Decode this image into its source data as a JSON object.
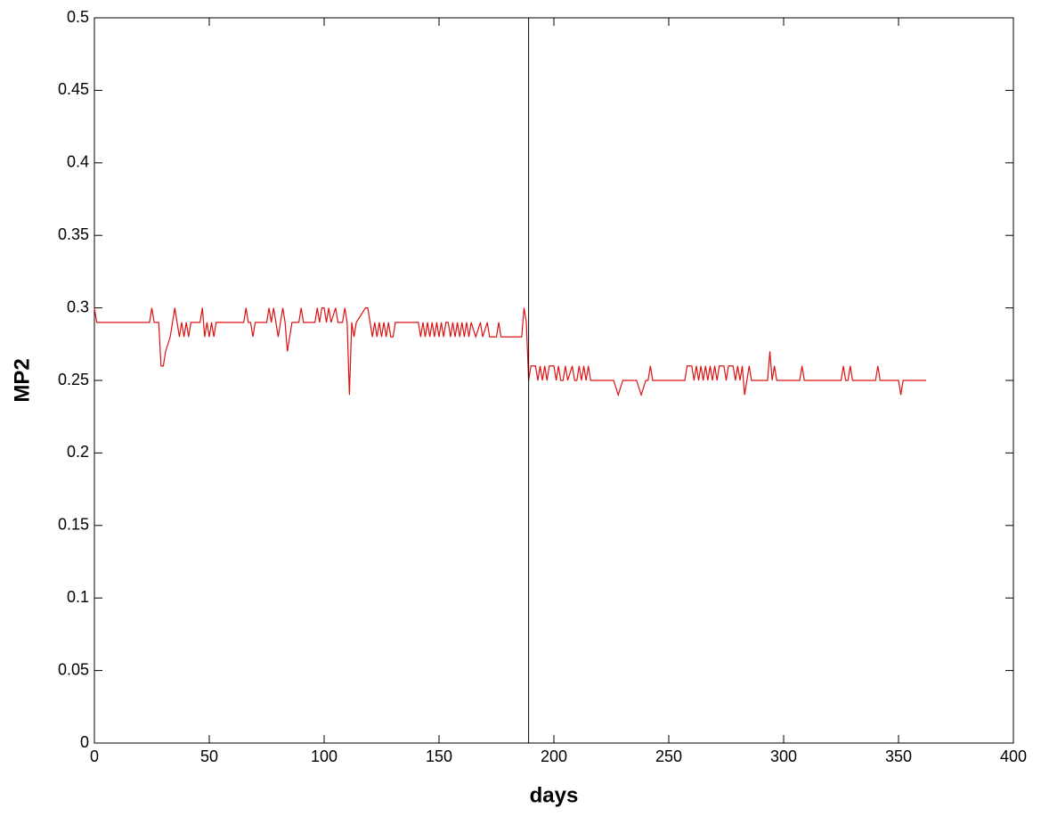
{
  "chart_data": {
    "type": "line",
    "xlabel": "days",
    "ylabel": "MP2",
    "xlim": [
      0,
      400
    ],
    "ylim": [
      0,
      0.5
    ],
    "xticks": [
      0,
      50,
      100,
      150,
      200,
      250,
      300,
      350,
      400
    ],
    "yticks": [
      0,
      0.05,
      0.1,
      0.15,
      0.2,
      0.25,
      0.3,
      0.35,
      0.4,
      0.45,
      0.5
    ],
    "vline": 189,
    "series": [
      {
        "color": "#dd1111",
        "x": [
          0,
          1,
          24,
          25,
          26,
          28,
          29,
          30,
          31,
          33,
          35,
          36,
          37,
          38,
          39,
          40,
          41,
          42,
          46,
          47,
          48,
          49,
          50,
          51,
          52,
          53,
          65,
          66,
          67,
          68,
          69,
          70,
          75,
          76,
          77,
          78,
          79,
          80,
          81,
          82,
          83,
          84,
          85,
          86,
          89,
          90,
          91,
          96,
          97,
          98,
          99,
          100,
          101,
          102,
          103,
          105,
          106,
          108,
          109,
          110,
          111,
          112,
          113,
          114,
          118,
          119,
          120,
          121,
          122,
          123,
          124,
          125,
          126,
          127,
          128,
          129,
          130,
          131,
          141,
          142,
          143,
          144,
          145,
          146,
          147,
          148,
          149,
          150,
          151,
          152,
          153,
          154,
          155,
          156,
          157,
          158,
          159,
          160,
          161,
          162,
          163,
          164,
          166,
          168,
          169,
          171,
          172,
          175,
          176,
          177,
          186,
          187,
          188,
          189,
          190,
          192,
          193,
          194,
          195,
          196,
          197,
          198,
          200,
          201,
          202,
          203,
          204,
          205,
          206,
          208,
          209,
          210,
          211,
          212,
          213,
          214,
          215,
          216,
          226,
          228,
          230,
          236,
          238,
          240,
          241,
          242,
          243,
          257,
          258,
          260,
          261,
          262,
          263,
          264,
          265,
          266,
          267,
          268,
          269,
          270,
          271,
          272,
          274,
          275,
          276,
          278,
          279,
          280,
          281,
          282,
          283,
          284,
          285,
          286,
          293,
          294,
          295,
          296,
          297,
          307,
          308,
          309,
          325,
          326,
          327,
          328,
          329,
          330,
          340,
          341,
          342,
          350,
          351,
          352,
          362
        ],
        "values": [
          0.3,
          0.29,
          0.29,
          0.3,
          0.29,
          0.29,
          0.26,
          0.26,
          0.27,
          0.28,
          0.3,
          0.29,
          0.28,
          0.29,
          0.28,
          0.29,
          0.28,
          0.29,
          0.29,
          0.3,
          0.28,
          0.29,
          0.28,
          0.29,
          0.28,
          0.29,
          0.29,
          0.3,
          0.29,
          0.29,
          0.28,
          0.29,
          0.29,
          0.3,
          0.29,
          0.3,
          0.29,
          0.28,
          0.29,
          0.3,
          0.29,
          0.27,
          0.28,
          0.29,
          0.29,
          0.3,
          0.29,
          0.29,
          0.3,
          0.29,
          0.3,
          0.3,
          0.29,
          0.3,
          0.29,
          0.3,
          0.29,
          0.29,
          0.3,
          0.29,
          0.24,
          0.29,
          0.28,
          0.29,
          0.3,
          0.3,
          0.29,
          0.28,
          0.29,
          0.28,
          0.29,
          0.28,
          0.29,
          0.28,
          0.29,
          0.28,
          0.28,
          0.29,
          0.29,
          0.28,
          0.29,
          0.28,
          0.29,
          0.28,
          0.29,
          0.28,
          0.29,
          0.28,
          0.29,
          0.28,
          0.29,
          0.29,
          0.28,
          0.29,
          0.28,
          0.29,
          0.28,
          0.29,
          0.28,
          0.29,
          0.28,
          0.29,
          0.28,
          0.29,
          0.28,
          0.29,
          0.28,
          0.28,
          0.29,
          0.28,
          0.28,
          0.3,
          0.29,
          0.25,
          0.26,
          0.26,
          0.25,
          0.26,
          0.25,
          0.26,
          0.25,
          0.26,
          0.26,
          0.25,
          0.26,
          0.25,
          0.25,
          0.26,
          0.25,
          0.26,
          0.25,
          0.25,
          0.26,
          0.25,
          0.26,
          0.25,
          0.26,
          0.25,
          0.25,
          0.24,
          0.25,
          0.25,
          0.24,
          0.25,
          0.25,
          0.26,
          0.25,
          0.25,
          0.26,
          0.26,
          0.25,
          0.26,
          0.25,
          0.26,
          0.25,
          0.26,
          0.25,
          0.26,
          0.25,
          0.26,
          0.25,
          0.26,
          0.26,
          0.25,
          0.26,
          0.26,
          0.25,
          0.26,
          0.25,
          0.26,
          0.24,
          0.25,
          0.26,
          0.25,
          0.25,
          0.27,
          0.25,
          0.26,
          0.25,
          0.25,
          0.26,
          0.25,
          0.25,
          0.26,
          0.25,
          0.25,
          0.26,
          0.25,
          0.25,
          0.26,
          0.25,
          0.25,
          0.24,
          0.25,
          0.25
        ]
      }
    ]
  }
}
